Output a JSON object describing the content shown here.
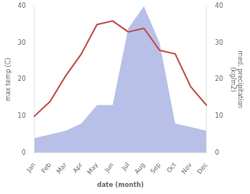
{
  "chart_data": {
    "type": "line",
    "categories": [
      "Jan",
      "Feb",
      "Mar",
      "Apr",
      "May",
      "Jun",
      "Jul",
      "Aug",
      "Sep",
      "Oct",
      "Nov",
      "Dec"
    ],
    "series": [
      {
        "type": "area",
        "color": "#b8c0e8",
        "axis": "y2",
        "values": [
          4,
          5,
          6,
          8,
          13,
          13,
          34,
          40,
          30,
          8,
          7,
          6
        ]
      },
      {
        "type": "line",
        "color": "#c0504d",
        "values": [
          10,
          14,
          21,
          27,
          35,
          36,
          33,
          34,
          28,
          27,
          18,
          13
        ]
      }
    ],
    "xlabel": "date (month)",
    "ylabel": "max temp (C)",
    "y2label": "med. precipitation\n(kg/m2)",
    "ylim": [
      0,
      40
    ],
    "yticks": [
      0,
      10,
      20,
      30,
      40
    ],
    "y2lim": [
      0,
      40
    ],
    "y2ticks": [
      0,
      10,
      20,
      30,
      40
    ],
    "grid": false
  }
}
